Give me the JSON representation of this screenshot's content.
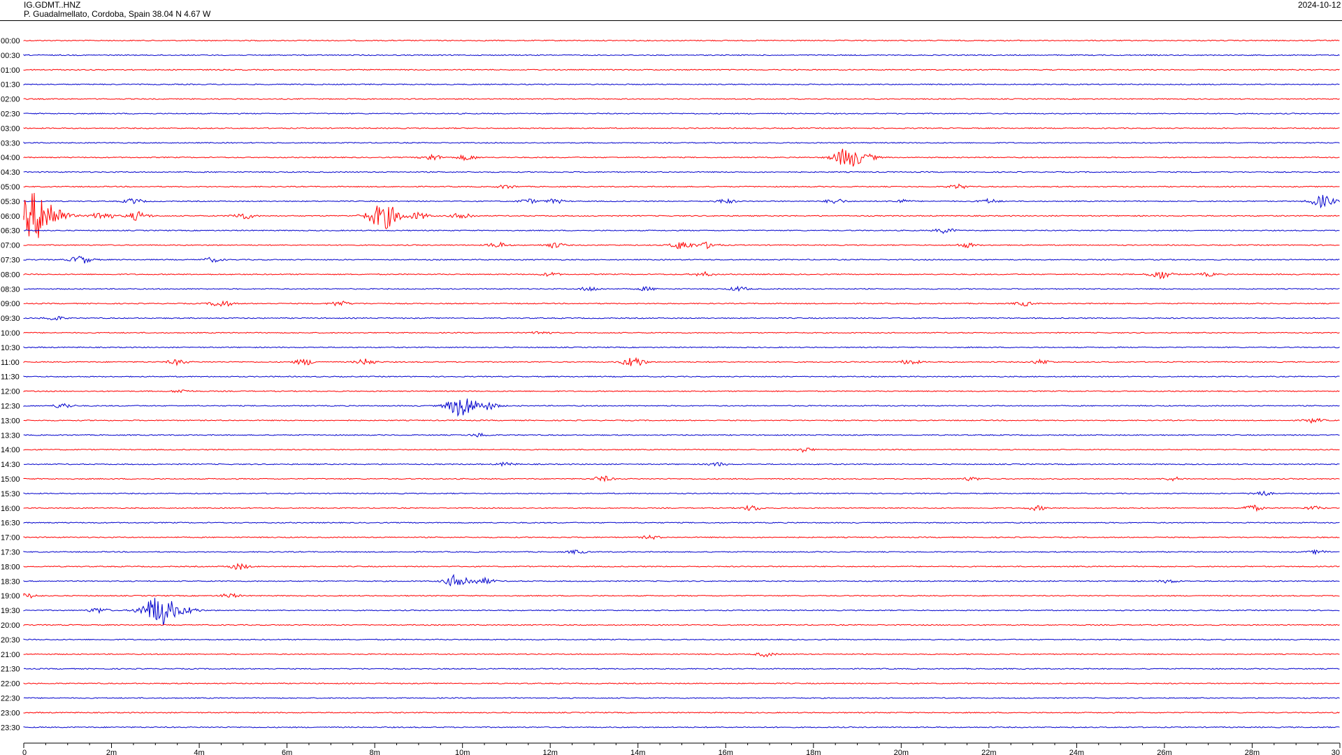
{
  "header": {
    "station_code": "IG.GDMT..HNZ",
    "location": "P. Guadalmellato, Cordoba, Spain  38.04 N 4.67 W",
    "date": "2024-10-12"
  },
  "chart_data": {
    "type": "line",
    "title": "",
    "xlabel": "",
    "ylabel": "",
    "xlim": [
      0,
      30
    ],
    "x_unit": "minutes",
    "x_ticks": [
      "0",
      "2m",
      "4m",
      "6m",
      "8m",
      "10m",
      "12m",
      "14m",
      "16m",
      "18m",
      "20m",
      "22m",
      "24m",
      "26m",
      "28m",
      "30"
    ],
    "rows": [
      "00:00",
      "00:30",
      "01:00",
      "01:30",
      "02:00",
      "02:30",
      "03:00",
      "03:30",
      "04:00",
      "04:30",
      "05:00",
      "05:30",
      "06:00",
      "06:30",
      "07:00",
      "07:30",
      "08:00",
      "08:30",
      "09:00",
      "09:30",
      "10:00",
      "10:30",
      "11:00",
      "11:30",
      "12:00",
      "12:30",
      "13:00",
      "13:30",
      "14:00",
      "14:30",
      "15:00",
      "15:30",
      "16:00",
      "16:30",
      "17:00",
      "17:30",
      "18:00",
      "18:30",
      "19:00",
      "19:30",
      "20:00",
      "20:30",
      "21:00",
      "21:30",
      "22:00",
      "22:30",
      "23:00",
      "23:30"
    ],
    "colors": {
      "even_rows": "#ff0000",
      "odd_rows": "#0000cc",
      "axis": "#000000"
    },
    "grid": false,
    "events": [
      {
        "row": "04:00",
        "minute": 9.3,
        "amplitude": 0.35
      },
      {
        "row": "04:00",
        "minute": 10.1,
        "amplitude": 0.3
      },
      {
        "row": "04:00",
        "minute": 18.8,
        "amplitude": 1.2
      },
      {
        "row": "04:00",
        "minute": 19.3,
        "amplitude": 0.25
      },
      {
        "row": "05:00",
        "minute": 11.0,
        "amplitude": 0.2
      },
      {
        "row": "05:00",
        "minute": 21.3,
        "amplitude": 0.25
      },
      {
        "row": "05:30",
        "minute": 2.5,
        "amplitude": 0.3
      },
      {
        "row": "05:30",
        "minute": 11.5,
        "amplitude": 0.25
      },
      {
        "row": "05:30",
        "minute": 12.1,
        "amplitude": 0.25
      },
      {
        "row": "05:30",
        "minute": 16.0,
        "amplitude": 0.25
      },
      {
        "row": "05:30",
        "minute": 18.5,
        "amplitude": 0.3
      },
      {
        "row": "05:30",
        "minute": 20.0,
        "amplitude": 0.2
      },
      {
        "row": "05:30",
        "minute": 22.0,
        "amplitude": 0.25
      },
      {
        "row": "05:30",
        "minute": 29.6,
        "amplitude": 0.7
      },
      {
        "row": "06:00",
        "minute": 0.3,
        "amplitude": 2.8
      },
      {
        "row": "06:00",
        "minute": 1.8,
        "amplitude": 0.5
      },
      {
        "row": "06:00",
        "minute": 2.6,
        "amplitude": 0.5
      },
      {
        "row": "06:00",
        "minute": 5.0,
        "amplitude": 0.4
      },
      {
        "row": "06:00",
        "minute": 8.2,
        "amplitude": 1.5
      },
      {
        "row": "06:00",
        "minute": 9.0,
        "amplitude": 0.4
      },
      {
        "row": "06:00",
        "minute": 10.0,
        "amplitude": 0.4
      },
      {
        "row": "06:30",
        "minute": 21.0,
        "amplitude": 0.3
      },
      {
        "row": "07:00",
        "minute": 10.8,
        "amplitude": 0.3
      },
      {
        "row": "07:00",
        "minute": 12.1,
        "amplitude": 0.3
      },
      {
        "row": "07:00",
        "minute": 15.0,
        "amplitude": 0.5
      },
      {
        "row": "07:00",
        "minute": 15.6,
        "amplitude": 0.35
      },
      {
        "row": "07:00",
        "minute": 21.5,
        "amplitude": 0.25
      },
      {
        "row": "07:30",
        "minute": 1.3,
        "amplitude": 0.45
      },
      {
        "row": "07:30",
        "minute": 4.3,
        "amplitude": 0.25
      },
      {
        "row": "08:00",
        "minute": 12.0,
        "amplitude": 0.2
      },
      {
        "row": "08:00",
        "minute": 15.5,
        "amplitude": 0.25
      },
      {
        "row": "08:00",
        "minute": 25.9,
        "amplitude": 0.5
      },
      {
        "row": "08:00",
        "minute": 27.0,
        "amplitude": 0.2
      },
      {
        "row": "08:30",
        "minute": 12.9,
        "amplitude": 0.25
      },
      {
        "row": "08:30",
        "minute": 14.2,
        "amplitude": 0.2
      },
      {
        "row": "08:30",
        "minute": 16.3,
        "amplitude": 0.25
      },
      {
        "row": "09:00",
        "minute": 4.5,
        "amplitude": 0.4
      },
      {
        "row": "09:00",
        "minute": 7.2,
        "amplitude": 0.3
      },
      {
        "row": "09:00",
        "minute": 22.8,
        "amplitude": 0.25
      },
      {
        "row": "09:30",
        "minute": 0.7,
        "amplitude": 0.25
      },
      {
        "row": "10:00",
        "minute": 11.8,
        "amplitude": 0.2
      },
      {
        "row": "11:00",
        "minute": 3.5,
        "amplitude": 0.3
      },
      {
        "row": "11:00",
        "minute": 6.4,
        "amplitude": 0.35
      },
      {
        "row": "11:00",
        "minute": 7.8,
        "amplitude": 0.35
      },
      {
        "row": "11:00",
        "minute": 13.9,
        "amplitude": 0.6
      },
      {
        "row": "11:00",
        "minute": 20.2,
        "amplitude": 0.3
      },
      {
        "row": "11:00",
        "minute": 23.2,
        "amplitude": 0.25
      },
      {
        "row": "12:00",
        "minute": 3.6,
        "amplitude": 0.2
      },
      {
        "row": "12:30",
        "minute": 0.9,
        "amplitude": 0.3
      },
      {
        "row": "12:30",
        "minute": 10.0,
        "amplitude": 1.3
      },
      {
        "row": "12:30",
        "minute": 10.6,
        "amplitude": 0.4
      },
      {
        "row": "13:00",
        "minute": 29.4,
        "amplitude": 0.25
      },
      {
        "row": "13:30",
        "minute": 10.4,
        "amplitude": 0.2
      },
      {
        "row": "14:00",
        "minute": 17.8,
        "amplitude": 0.25
      },
      {
        "row": "14:30",
        "minute": 11.0,
        "amplitude": 0.2
      },
      {
        "row": "14:30",
        "minute": 15.8,
        "amplitude": 0.2
      },
      {
        "row": "15:00",
        "minute": 13.2,
        "amplitude": 0.3
      },
      {
        "row": "15:00",
        "minute": 21.6,
        "amplitude": 0.2
      },
      {
        "row": "15:00",
        "minute": 26.2,
        "amplitude": 0.2
      },
      {
        "row": "15:30",
        "minute": 28.2,
        "amplitude": 0.3
      },
      {
        "row": "16:00",
        "minute": 16.6,
        "amplitude": 0.3
      },
      {
        "row": "16:00",
        "minute": 23.1,
        "amplitude": 0.25
      },
      {
        "row": "16:00",
        "minute": 28.0,
        "amplitude": 0.35
      },
      {
        "row": "16:00",
        "minute": 29.4,
        "amplitude": 0.2
      },
      {
        "row": "17:00",
        "minute": 14.3,
        "amplitude": 0.2
      },
      {
        "row": "17:30",
        "minute": 12.6,
        "amplitude": 0.2
      },
      {
        "row": "17:30",
        "minute": 29.5,
        "amplitude": 0.2
      },
      {
        "row": "18:00",
        "minute": 4.9,
        "amplitude": 0.35
      },
      {
        "row": "18:30",
        "minute": 9.9,
        "amplitude": 0.8
      },
      {
        "row": "18:30",
        "minute": 10.5,
        "amplitude": 0.35
      },
      {
        "row": "18:30",
        "minute": 26.1,
        "amplitude": 0.2
      },
      {
        "row": "19:00",
        "minute": 0.1,
        "amplitude": 0.25
      },
      {
        "row": "19:00",
        "minute": 4.7,
        "amplitude": 0.25
      },
      {
        "row": "19:30",
        "minute": 1.7,
        "amplitude": 0.3
      },
      {
        "row": "19:30",
        "minute": 3.1,
        "amplitude": 1.8
      },
      {
        "row": "19:30",
        "minute": 3.8,
        "amplitude": 0.3
      },
      {
        "row": "21:00",
        "minute": 16.9,
        "amplitude": 0.25
      }
    ]
  }
}
